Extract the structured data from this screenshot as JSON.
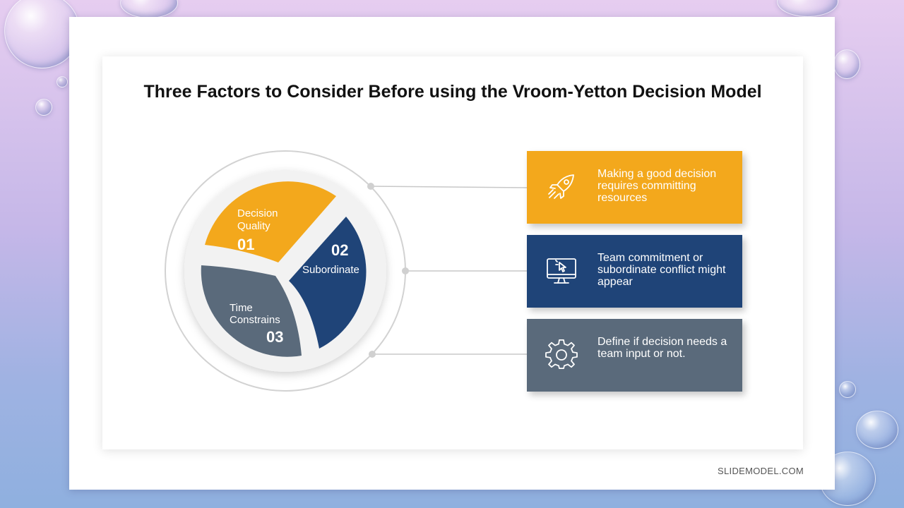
{
  "slide": {
    "title": "Three Factors to Consider Before using the Vroom-Yetton Decision Model",
    "footer": "SLIDEMODEL.COM"
  },
  "segments": [
    {
      "label_line1": "Decision",
      "label_line2": "Quality",
      "number": "01",
      "color": "#f3a81c"
    },
    {
      "label_line1": "Subordinate",
      "number": "02",
      "color": "#1f4478"
    },
    {
      "label_line1": "Time",
      "label_line2": "Constrains",
      "number": "03",
      "color": "#5a6a7b"
    }
  ],
  "cards": [
    {
      "icon": "rocket-icon",
      "text": "Making a good decision requires committing resources",
      "color": "#f3a81c"
    },
    {
      "icon": "monitor-icon",
      "text": "Team commitment or subordinate conflict might appear",
      "color": "#1f4478"
    },
    {
      "icon": "gear-icon",
      "text": "Define if decision needs a team input or not.",
      "color": "#5a6a7b"
    }
  ]
}
